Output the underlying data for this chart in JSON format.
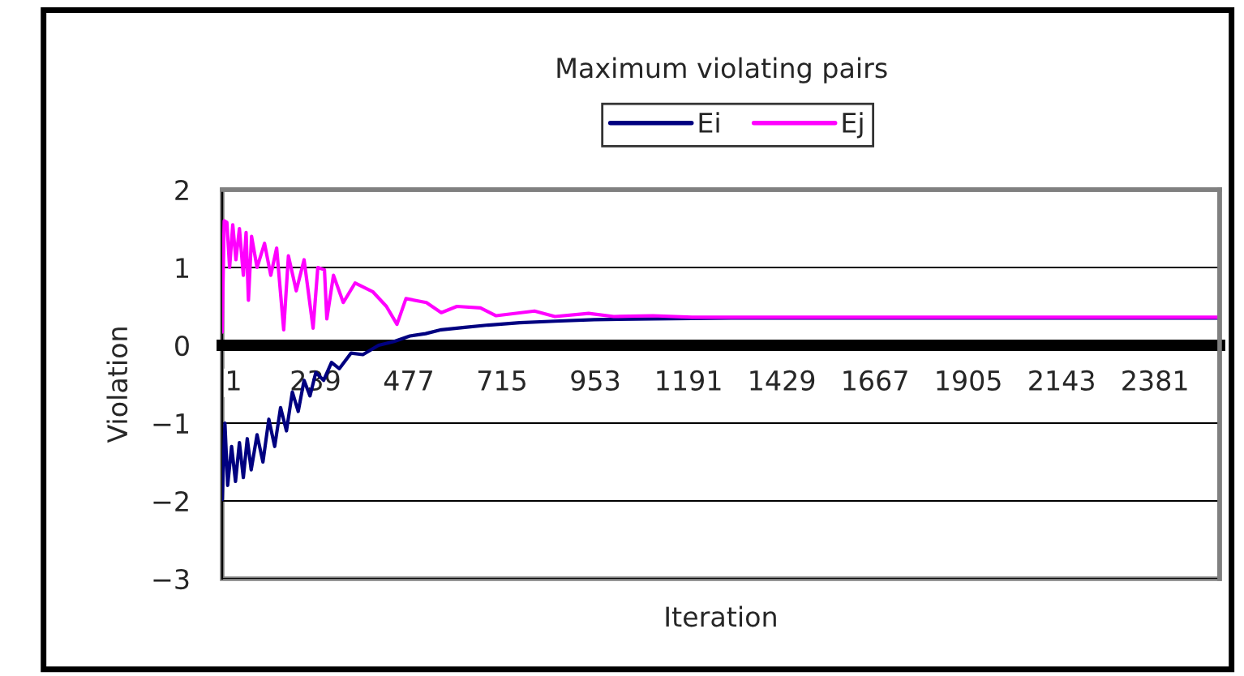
{
  "chart_data": {
    "type": "line",
    "title": "Maximum violating pairs",
    "xlabel": "Iteration",
    "ylabel": "Violation",
    "series": [
      {
        "name": "Ei",
        "color": "#000080",
        "x": [
          1,
          8,
          15,
          25,
          35,
          45,
          55,
          65,
          75,
          90,
          105,
          120,
          135,
          150,
          165,
          180,
          195,
          210,
          225,
          240,
          260,
          280,
          300,
          330,
          360,
          400,
          440,
          480,
          520,
          560,
          620,
          680,
          760,
          850,
          950,
          1100,
          1300,
          1600,
          2000,
          2546
        ],
        "values": [
          -1.98,
          -1.0,
          -1.8,
          -1.3,
          -1.75,
          -1.25,
          -1.7,
          -1.2,
          -1.6,
          -1.15,
          -1.5,
          -0.95,
          -1.3,
          -0.8,
          -1.1,
          -0.6,
          -0.85,
          -0.45,
          -0.65,
          -0.35,
          -0.45,
          -0.22,
          -0.3,
          -0.1,
          -0.12,
          0.0,
          0.05,
          0.12,
          0.15,
          0.2,
          0.23,
          0.26,
          0.29,
          0.31,
          0.33,
          0.34,
          0.35,
          0.35,
          0.35,
          0.35
        ]
      },
      {
        "name": "Ej",
        "color": "#ff00ff",
        "x": [
          1,
          6,
          13,
          20,
          28,
          36,
          45,
          55,
          62,
          68,
          76,
          90,
          109,
          125,
          140,
          158,
          170,
          190,
          210,
          233,
          245,
          262,
          268,
          285,
          310,
          340,
          385,
          420,
          447,
          470,
          522,
          560,
          600,
          660,
          700,
          798,
          850,
          936,
          1000,
          1100,
          1200,
          1500,
          2000,
          2546
        ],
        "values": [
          0.17,
          1.6,
          1.58,
          1.0,
          1.55,
          1.1,
          1.5,
          0.9,
          1.45,
          0.58,
          1.4,
          1.0,
          1.31,
          0.9,
          1.25,
          0.2,
          1.15,
          0.7,
          1.1,
          0.22,
          1.0,
          0.97,
          0.34,
          0.9,
          0.55,
          0.8,
          0.69,
          0.5,
          0.27,
          0.6,
          0.55,
          0.42,
          0.5,
          0.48,
          0.38,
          0.44,
          0.37,
          0.41,
          0.37,
          0.38,
          0.36,
          0.36,
          0.36,
          0.36
        ]
      }
    ],
    "xlim": [
      1,
      2546
    ],
    "xticks": [
      1,
      239,
      477,
      715,
      953,
      1191,
      1429,
      1667,
      1905,
      2143,
      2381
    ],
    "ylim": [
      -3,
      2
    ],
    "yticks": [
      {
        "value": -3,
        "label": "−3"
      },
      {
        "value": -2,
        "label": "−2"
      },
      {
        "value": -1,
        "label": "−1"
      },
      0,
      1,
      2
    ],
    "grid": "y",
    "legend": "top",
    "line_style": "solid",
    "marker": "none"
  }
}
